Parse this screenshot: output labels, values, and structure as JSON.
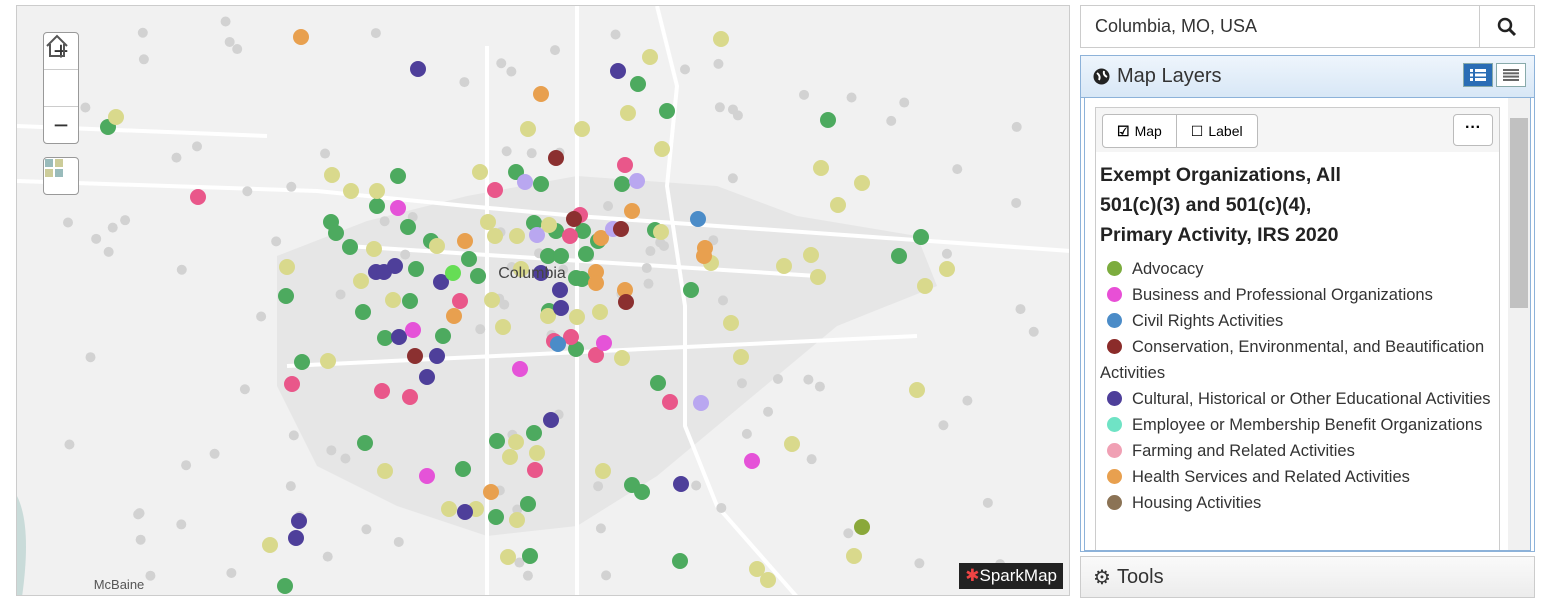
{
  "search": {
    "value": "Columbia, MO, USA"
  },
  "map": {
    "labels": [
      "Columbia",
      "McBaine"
    ],
    "brand": "SparkMap"
  },
  "panel": {
    "title": "Map Layers",
    "tabs": [
      "Map",
      "Label"
    ],
    "layer_title": "Exempt Organizations, All 501(c)(3) and 501(c)(4), Primary Activity, IRS 2020",
    "legend": [
      {
        "label": "Advocacy",
        "color": "#7cac3e"
      },
      {
        "label": "Business and Professional Organizations",
        "color": "#e84fd6"
      },
      {
        "label": "Civil Rights Activities",
        "color": "#4b8cc8"
      },
      {
        "label": "Conservation, Environmental, and Beautification Activities",
        "color": "#8b2c2a"
      },
      {
        "label": "Cultural, Historical or Other Educational Activities",
        "color": "#4e3f9a"
      },
      {
        "label": "Employee or Membership Benefit Organizations",
        "color": "#6fe3c5"
      },
      {
        "label": "Farming and Related Activities",
        "color": "#f0a0b4"
      },
      {
        "label": "Health Services and Related Activities",
        "color": "#e8a04f"
      },
      {
        "label": "Housing Activities",
        "color": "#8b7355"
      }
    ]
  },
  "tools": {
    "title": "Tools"
  }
}
